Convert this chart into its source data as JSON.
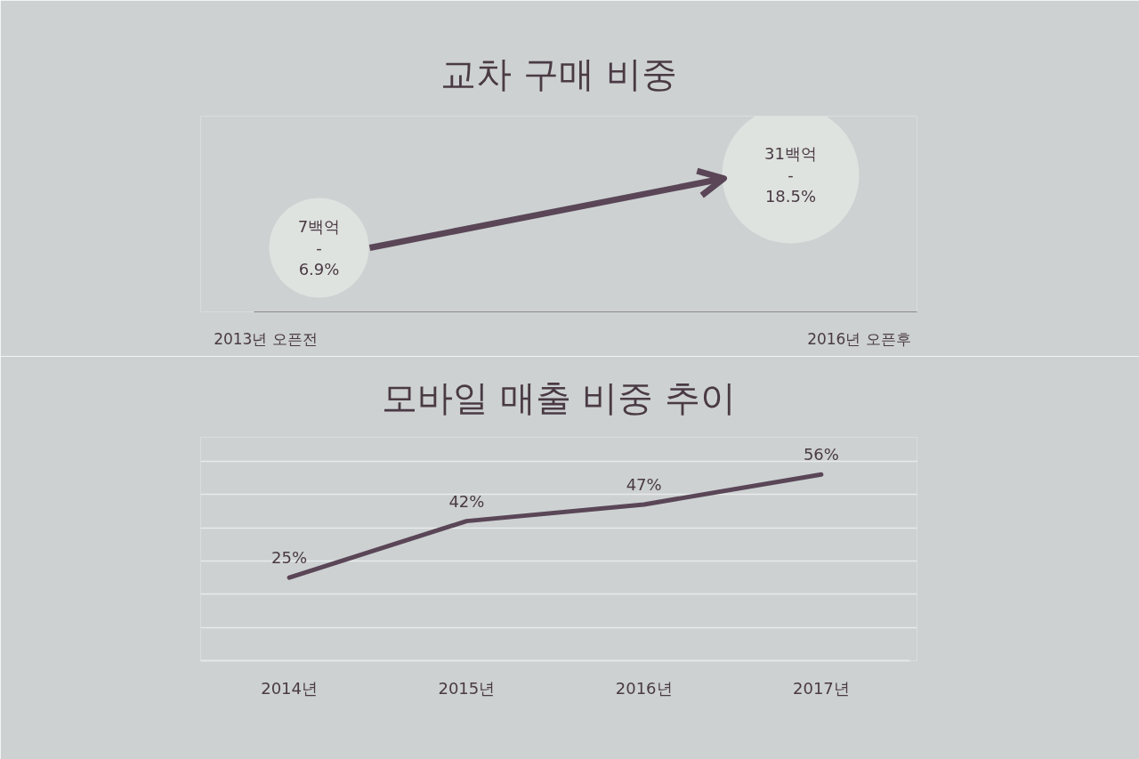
{
  "chart_data": [
    {
      "type": "other",
      "title": "교차 구매 비중",
      "categories": [
        "2013년 오픈전",
        "2016년 오픈후"
      ],
      "annotations": [
        "7백억\n-\n6.9%",
        "31백억\n-\n18.5%"
      ]
    },
    {
      "type": "line",
      "title": "모바일 매출 비중 추이",
      "categories": [
        "2014년",
        "2015년",
        "2016년",
        "2017년"
      ],
      "values": [
        25,
        42,
        47,
        56
      ],
      "value_labels": [
        "25%",
        "42%",
        "47%",
        "56%"
      ],
      "color": "#5a4657",
      "ylim": [
        0,
        60
      ],
      "yticks": [
        {
          "value": 0,
          "label": null
        },
        {
          "value": 10,
          "label": null
        },
        {
          "value": 20,
          "label": null
        },
        {
          "value": 30,
          "label": null
        },
        {
          "value": 40,
          "label": null
        },
        {
          "value": 50,
          "label": null
        },
        {
          "value": 60,
          "label": null
        }
      ],
      "grid": "y",
      "tick_labels": "x"
    }
  ]
}
